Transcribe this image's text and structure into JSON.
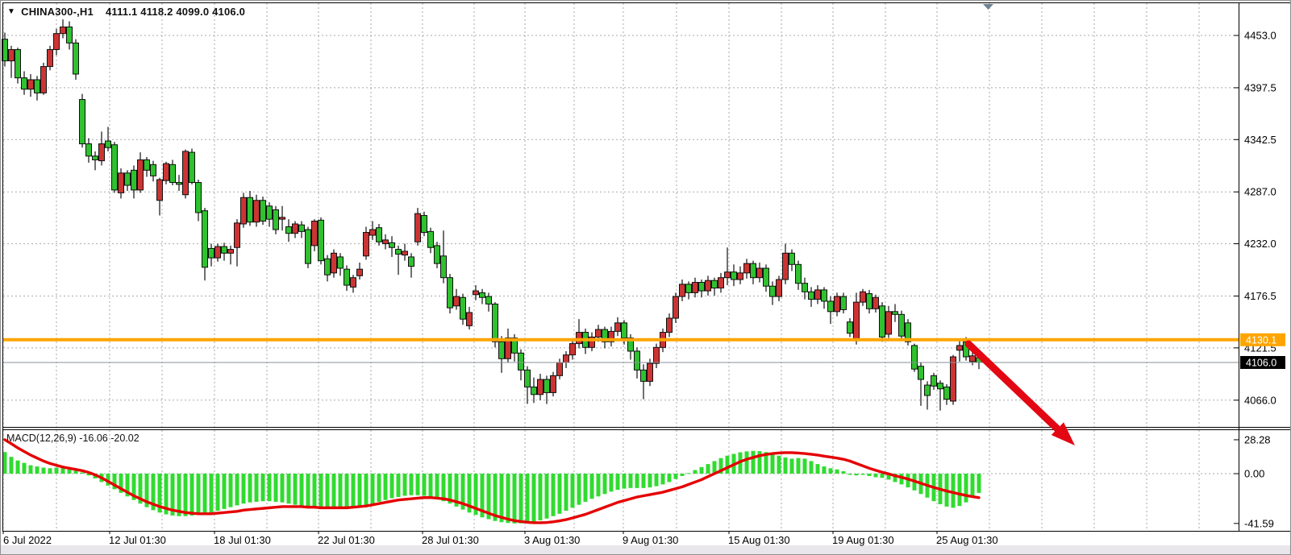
{
  "window": {
    "title_symbol": "CHINA300-,H1",
    "title_ohlc": "4111.1 4118.2 4099.0 4106.0"
  },
  "price_axis": {
    "labels": [
      "4453.0",
      "4397.5",
      "4342.5",
      "4287.0",
      "4232.0",
      "4176.5",
      "4121.5",
      "4066.0"
    ],
    "orange_tag": "4130.1",
    "current_tag": "4106.0"
  },
  "time_axis": {
    "labels": [
      "6 Jul 2022",
      "12 Jul 01:30",
      "18 Jul 01:30",
      "22 Jul 01:30",
      "28 Jul 01:30",
      "3 Aug 01:30",
      "9 Aug 01:30",
      "15 Aug 01:30",
      "19 Aug 01:30",
      "25 Aug 01:30"
    ]
  },
  "macd_panel": {
    "label": "MACD(12,26,9) -16.06 -20.02",
    "axis_labels": [
      "28.28",
      "0.00",
      "-41.59"
    ]
  },
  "annotations": {
    "trend_arrow": {
      "direction": "down-right",
      "color": "#e30613"
    },
    "bar_position_marker": {
      "shape": "triangle-down",
      "color": "#6e8394"
    }
  },
  "colors": {
    "bull_candle": "#cc3434",
    "bear_candle": "#2fc12f",
    "wick": "#101010",
    "hist_bar": "#30db30",
    "signal_line": "#e50000",
    "orange_line": "#ffa500",
    "grid": "#a9a9a9",
    "frame": "#000000",
    "current_price_line": "#8a8f98",
    "tag_text": "#ffffff",
    "axis_text": "#000000"
  },
  "chart_data": {
    "type": "candlestick",
    "symbol": "CHINA300-",
    "timeframe": "H1",
    "title": "CHINA300-,H1 4111.1 4118.2 4099.0 4106.0",
    "last_quote": {
      "open": 4111.1,
      "high": 4118.2,
      "low": 4099.0,
      "close": 4106.0
    },
    "orange_line_price": 4130.1,
    "current_price": 4106.0,
    "y_ticks": [
      4453.0,
      4397.5,
      4342.5,
      4287.0,
      4232.0,
      4176.5,
      4121.5,
      4066.0
    ],
    "x_tick_labels": [
      "6 Jul 2022",
      "12 Jul 01:30",
      "18 Jul 01:30",
      "22 Jul 01:30",
      "28 Jul 01:30",
      "3 Aug 01:30",
      "9 Aug 01:30",
      "15 Aug 01:30",
      "19 Aug 01:30",
      "25 Aug 01:30"
    ],
    "note": "green = bearish candle, red = bullish candle",
    "candles": [
      [
        4449,
        4456,
        4420,
        4426
      ],
      [
        4426,
        4442,
        4408,
        4438
      ],
      [
        4438,
        4440,
        4402,
        4408
      ],
      [
        4408,
        4415,
        4390,
        4396
      ],
      [
        4396,
        4412,
        4388,
        4406
      ],
      [
        4406,
        4410,
        4384,
        4392
      ],
      [
        4392,
        4424,
        4390,
        4420
      ],
      [
        4420,
        4442,
        4416,
        4438
      ],
      [
        4438,
        4460,
        4432,
        4455
      ],
      [
        4455,
        4470,
        4450,
        4462
      ],
      [
        4462,
        4468,
        4438,
        4445
      ],
      [
        4445,
        4449,
        4406,
        4412
      ],
      [
        4385,
        4391,
        4334,
        4338
      ],
      [
        4338,
        4344,
        4318,
        4325
      ],
      [
        4325,
        4330,
        4310,
        4321
      ],
      [
        4320,
        4351,
        4315,
        4338
      ],
      [
        4341,
        4356,
        4330,
        4334
      ],
      [
        4337,
        4340,
        4286,
        4289
      ],
      [
        4286,
        4312,
        4280,
        4307
      ],
      [
        4307,
        4310,
        4288,
        4294
      ],
      [
        4310,
        4315,
        4280,
        4289
      ],
      [
        4289,
        4329,
        4286,
        4321
      ],
      [
        4321,
        4324,
        4303,
        4310
      ],
      [
        4316,
        4320,
        4298,
        4304
      ],
      [
        4278,
        4302,
        4262,
        4300
      ],
      [
        4299,
        4319,
        4295,
        4317
      ],
      [
        4316,
        4321,
        4294,
        4297
      ],
      [
        4297,
        4305,
        4288,
        4295
      ],
      [
        4284,
        4332,
        4280,
        4330
      ],
      [
        4329,
        4333,
        4295,
        4297
      ],
      [
        4297,
        4300,
        4256,
        4265
      ],
      [
        4267,
        4270,
        4193,
        4207
      ],
      [
        4227,
        4232,
        4208,
        4217
      ],
      [
        4217,
        4232,
        4213,
        4229
      ],
      [
        4229,
        4233,
        4214,
        4222
      ],
      [
        4222,
        4230,
        4210,
        4226
      ],
      [
        4228,
        4258,
        4208,
        4254
      ],
      [
        4253,
        4286,
        4249,
        4281
      ],
      [
        4281,
        4288,
        4251,
        4255
      ],
      [
        4255,
        4284,
        4250,
        4278
      ],
      [
        4278,
        4282,
        4252,
        4256
      ],
      [
        4272,
        4276,
        4250,
        4258
      ],
      [
        4268,
        4272,
        4242,
        4247
      ],
      [
        4258,
        4272,
        4246,
        4260
      ],
      [
        4250,
        4258,
        4234,
        4243
      ],
      [
        4243,
        4256,
        4238,
        4253
      ],
      [
        4252,
        4256,
        4238,
        4245
      ],
      [
        4247,
        4250,
        4206,
        4211
      ],
      [
        4230,
        4258,
        4224,
        4256
      ],
      [
        4257,
        4260,
        4210,
        4214
      ],
      [
        4216,
        4220,
        4192,
        4199
      ],
      [
        4201,
        4226,
        4196,
        4222
      ],
      [
        4218,
        4222,
        4198,
        4206
      ],
      [
        4205,
        4209,
        4182,
        4188
      ],
      [
        4186,
        4199,
        4180,
        4196
      ],
      [
        4198,
        4212,
        4194,
        4205
      ],
      [
        4219,
        4250,
        4215,
        4244
      ],
      [
        4241,
        4256,
        4236,
        4247
      ],
      [
        4249,
        4253,
        4230,
        4234
      ],
      [
        4232,
        4242,
        4226,
        4236
      ],
      [
        4233,
        4240,
        4218,
        4228
      ],
      [
        4226,
        4230,
        4199,
        4221
      ],
      [
        4220,
        4232,
        4214,
        4224
      ],
      [
        4218,
        4222,
        4196,
        4208
      ],
      [
        4234,
        4270,
        4230,
        4264
      ],
      [
        4262,
        4266,
        4240,
        4244
      ],
      [
        4245,
        4249,
        4222,
        4228
      ],
      [
        4230,
        4234,
        4206,
        4211
      ],
      [
        4219,
        4246,
        4190,
        4196
      ],
      [
        4196,
        4200,
        4158,
        4164
      ],
      [
        4166,
        4184,
        4162,
        4176
      ],
      [
        4175,
        4179,
        4146,
        4152
      ],
      [
        4145,
        4165,
        4141,
        4159
      ],
      [
        4178,
        4188,
        4172,
        4182
      ],
      [
        4180,
        4184,
        4168,
        4175
      ],
      [
        4176,
        4180,
        4160,
        4168
      ],
      [
        4168,
        4170,
        4122,
        4128
      ],
      [
        4128,
        4134,
        4095,
        4110
      ],
      [
        4110,
        4142,
        4106,
        4132
      ],
      [
        4132,
        4136,
        4107,
        4116
      ],
      [
        4116,
        4120,
        4087,
        4098
      ],
      [
        4098,
        4102,
        4062,
        4080
      ],
      [
        4080,
        4090,
        4063,
        4072
      ],
      [
        4072,
        4094,
        4066,
        4088
      ],
      [
        4088,
        4092,
        4062,
        4074
      ],
      [
        4074,
        4096,
        4070,
        4092
      ],
      [
        4092,
        4110,
        4088,
        4106
      ],
      [
        4106,
        4118,
        4100,
        4114
      ],
      [
        4114,
        4130,
        4109,
        4126
      ],
      [
        4126,
        4152,
        4121,
        4138
      ],
      [
        4138,
        4142,
        4115,
        4122
      ],
      [
        4122,
        4138,
        4118,
        4133
      ],
      [
        4133,
        4146,
        4128,
        4141
      ],
      [
        4141,
        4144,
        4121,
        4128
      ],
      [
        4128,
        4144,
        4123,
        4139
      ],
      [
        4139,
        4154,
        4134,
        4148
      ],
      [
        4148,
        4151,
        4125,
        4132
      ],
      [
        4132,
        4136,
        4109,
        4118
      ],
      [
        4118,
        4122,
        4089,
        4098
      ],
      [
        4098,
        4104,
        4067,
        4086
      ],
      [
        4086,
        4110,
        4081,
        4105
      ],
      [
        4105,
        4126,
        4100,
        4122
      ],
      [
        4122,
        4142,
        4117,
        4138
      ],
      [
        4138,
        4158,
        4133,
        4153
      ],
      [
        4153,
        4180,
        4148,
        4176
      ],
      [
        4176,
        4194,
        4171,
        4189
      ],
      [
        4189,
        4192,
        4173,
        4180
      ],
      [
        4180,
        4196,
        4175,
        4191
      ],
      [
        4191,
        4194,
        4175,
        4182
      ],
      [
        4182,
        4198,
        4177,
        4193
      ],
      [
        4193,
        4196,
        4177,
        4185
      ],
      [
        4185,
        4201,
        4180,
        4196
      ],
      [
        4196,
        4228,
        4188,
        4202
      ],
      [
        4202,
        4210,
        4187,
        4194
      ],
      [
        4194,
        4208,
        4189,
        4201
      ],
      [
        4201,
        4216,
        4195,
        4211
      ],
      [
        4211,
        4214,
        4189,
        4196
      ],
      [
        4196,
        4212,
        4191,
        4206
      ],
      [
        4206,
        4210,
        4181,
        4187
      ],
      [
        4187,
        4192,
        4167,
        4176
      ],
      [
        4176,
        4198,
        4171,
        4194
      ],
      [
        4194,
        4232,
        4189,
        4222
      ],
      [
        4222,
        4226,
        4203,
        4210
      ],
      [
        4210,
        4214,
        4183,
        4190
      ],
      [
        4190,
        4196,
        4173,
        4181
      ],
      [
        4181,
        4186,
        4165,
        4173
      ],
      [
        4173,
        4188,
        4168,
        4183
      ],
      [
        4183,
        4186,
        4163,
        4171
      ],
      [
        4171,
        4176,
        4147,
        4160
      ],
      [
        4160,
        4180,
        4155,
        4176
      ],
      [
        4176,
        4180,
        4158,
        4162
      ],
      [
        4149,
        4153,
        4133,
        4137
      ],
      [
        4129,
        4180,
        4125,
        4170
      ],
      [
        4170,
        4184,
        4166,
        4181
      ],
      [
        4179,
        4183,
        4158,
        4163
      ],
      [
        4163,
        4178,
        4159,
        4175
      ],
      [
        4166,
        4170,
        4128,
        4133
      ],
      [
        4136,
        4166,
        4132,
        4160
      ],
      [
        4160,
        4168,
        4149,
        4157
      ],
      [
        4157,
        4161,
        4129,
        4134
      ],
      [
        4148,
        4152,
        4124,
        4128
      ],
      [
        4124,
        4126,
        4096,
        4099
      ],
      [
        4102,
        4106,
        4060,
        4088
      ],
      [
        4082,
        4086,
        4056,
        4071
      ],
      [
        4092,
        4095,
        4077,
        4081
      ],
      [
        4084,
        4087,
        4055,
        4078
      ],
      [
        4080,
        4083,
        4061,
        4067
      ],
      [
        4065,
        4114,
        4061,
        4112
      ],
      [
        4119,
        4131,
        4107,
        4124
      ],
      [
        4128,
        4133,
        4108,
        4112
      ],
      [
        4107,
        4117,
        4103,
        4113
      ],
      [
        4111.1,
        4118.2,
        4099.0,
        4106.0
      ]
    ],
    "indicator": {
      "name": "MACD",
      "params": [
        12,
        26,
        9
      ],
      "macd_value": -16.06,
      "signal_value": -20.02,
      "y_ticks": [
        28.28,
        0.0,
        -41.59
      ],
      "histogram": [
        18,
        14,
        11,
        9,
        7,
        6,
        5,
        4.5,
        5,
        4.5,
        3.5,
        2.5,
        1,
        -1.5,
        -4,
        -7,
        -10,
        -13,
        -16,
        -19,
        -22,
        -25,
        -28,
        -30.5,
        -32.5,
        -34,
        -35,
        -35.5,
        -35.5,
        -35,
        -34,
        -33.5,
        -32.5,
        -31,
        -29.5,
        -28,
        -26.5,
        -25,
        -24,
        -23.5,
        -23,
        -23,
        -23.5,
        -24,
        -25,
        -26,
        -27,
        -27.5,
        -28,
        -28.5,
        -29,
        -29.5,
        -29.5,
        -29,
        -28.5,
        -27.5,
        -26.5,
        -25,
        -23.5,
        -22,
        -20.5,
        -19.5,
        -18.5,
        -18,
        -18,
        -18.5,
        -19.5,
        -21,
        -23,
        -25,
        -27.5,
        -30,
        -32.5,
        -34.5,
        -36.5,
        -38,
        -39.5,
        -40.5,
        -41.2,
        -41.6,
        -41.5,
        -41,
        -40.2,
        -39,
        -37.5,
        -35.5,
        -33.5,
        -31,
        -28.5,
        -26,
        -23.5,
        -21,
        -19,
        -17,
        -15,
        -13.5,
        -12.5,
        -12,
        -12,
        -12,
        -11.5,
        -10.5,
        -9,
        -7,
        -4.5,
        -2,
        0.5,
        3,
        5.5,
        8,
        10.5,
        13,
        15,
        16.5,
        17.8,
        18.6,
        19,
        18.8,
        18,
        16.5,
        15,
        13.5,
        12.5,
        13,
        12.5,
        10.5,
        8,
        6,
        4.5,
        3.5,
        2,
        -1,
        -1.5,
        -1,
        -2,
        -3,
        -3.5,
        -5,
        -7,
        -9,
        -11.5,
        -14,
        -17,
        -20,
        -23,
        -25.5,
        -27.5,
        -28.5,
        -27,
        -24,
        -20,
        -16.06
      ],
      "signal": [
        28.3,
        25,
        21.5,
        18.5,
        15.5,
        13,
        10.5,
        8.5,
        7,
        5.5,
        4.5,
        3.5,
        2.5,
        1,
        -1,
        -3.5,
        -6.5,
        -9.5,
        -12.5,
        -15.5,
        -18.5,
        -21,
        -23.5,
        -25.5,
        -27.5,
        -29,
        -30.5,
        -31.5,
        -32.5,
        -33,
        -33.5,
        -33.5,
        -33.5,
        -33,
        -32.5,
        -32,
        -31.5,
        -30.5,
        -30,
        -29.5,
        -29,
        -28.5,
        -28,
        -27.5,
        -27.5,
        -27.5,
        -27.5,
        -28,
        -28,
        -28.5,
        -28.5,
        -28.5,
        -28.5,
        -28.5,
        -28,
        -27.5,
        -27,
        -26,
        -25,
        -24,
        -23,
        -22,
        -21.5,
        -21,
        -20.5,
        -20,
        -20,
        -20.5,
        -21,
        -22,
        -23.5,
        -25,
        -27,
        -29,
        -31,
        -33,
        -35,
        -36.5,
        -38,
        -39.2,
        -40,
        -40.6,
        -41,
        -41,
        -40.8,
        -40.2,
        -39.4,
        -38.4,
        -37,
        -35.5,
        -34,
        -32,
        -30,
        -28,
        -26,
        -24,
        -22.5,
        -21,
        -19.5,
        -18.5,
        -17.5,
        -16.5,
        -15.5,
        -14,
        -12.5,
        -11,
        -9,
        -7,
        -5,
        -2.5,
        0,
        2.5,
        5,
        7.5,
        10,
        12,
        13.5,
        15,
        16,
        16.8,
        17.3,
        17.5,
        17.5,
        17.2,
        16.8,
        16.2,
        15.5,
        14.6,
        13.8,
        13,
        12,
        10.5,
        8.5,
        6.5,
        4.5,
        2.8,
        1.2,
        -0.2,
        -1.8,
        -3,
        -4.5,
        -6.2,
        -8,
        -9.8,
        -11.5,
        -13,
        -14.5,
        -15.8,
        -17,
        -18.2,
        -19.2,
        -20.02
      ]
    }
  }
}
